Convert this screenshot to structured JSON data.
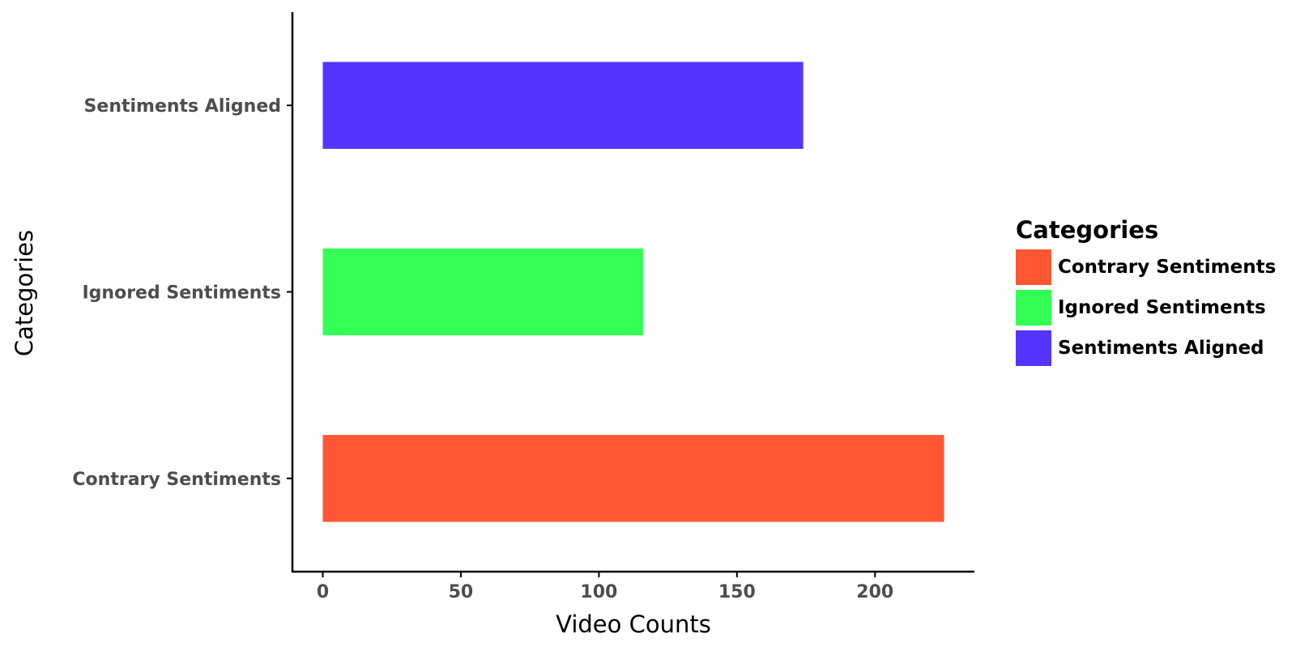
{
  "chart_data": {
    "type": "bar",
    "orientation": "horizontal",
    "categories": [
      "Contrary Sentiments",
      "Ignored Sentiments",
      "Sentiments Aligned"
    ],
    "values": [
      225,
      116,
      174
    ],
    "colors": [
      "#FF5733",
      "#33FF57",
      "#5733FF"
    ],
    "xlabel": "Video Counts",
    "ylabel": "Categories",
    "xlim": [
      -11,
      236
    ],
    "xticks": [
      0,
      50,
      100,
      150,
      200
    ],
    "grid": false,
    "legend": {
      "title": "Categories",
      "placement": "right",
      "entries": [
        "Contrary Sentiments",
        "Ignored Sentiments",
        "Sentiments Aligned"
      ]
    },
    "axis_text_color": "#4d4d4d",
    "axis_line_color": "#000000"
  }
}
